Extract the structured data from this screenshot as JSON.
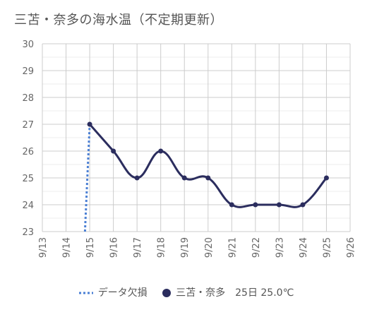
{
  "chart_data": {
    "type": "line",
    "title": "三苫・奈多の海水温（不定期更新）",
    "xlabel": "",
    "ylabel": "",
    "categories": [
      "9/13",
      "9/14",
      "9/15",
      "9/16",
      "9/17",
      "9/18",
      "9/19",
      "9/20",
      "9/21",
      "9/22",
      "9/23",
      "9/24",
      "9/25",
      "9/26"
    ],
    "ylim": [
      23,
      30
    ],
    "yticks": [
      "30",
      "29",
      "28",
      "27",
      "26",
      "25",
      "24",
      "23"
    ],
    "grid": true,
    "legend_position": "bottom",
    "series": [
      {
        "name": "三苫・奈多",
        "legend_label": "三苫・奈多　25日 25.0℃",
        "color": "#2b2d5e",
        "style": "solid-smooth",
        "points": [
          {
            "x": "9/15",
            "y": 27
          },
          {
            "x": "9/16",
            "y": 26
          },
          {
            "x": "9/17",
            "y": 25
          },
          {
            "x": "9/18",
            "y": 26
          },
          {
            "x": "9/19",
            "y": 25
          },
          {
            "x": "9/20",
            "y": 25
          },
          {
            "x": "9/21",
            "y": 24
          },
          {
            "x": "9/22",
            "y": 24
          },
          {
            "x": "9/23",
            "y": 24
          },
          {
            "x": "9/24",
            "y": 24
          },
          {
            "x": "9/25",
            "y": 25
          }
        ]
      },
      {
        "name": "データ欠損",
        "legend_label": "データ欠損",
        "color": "#4a7fd4",
        "style": "dotted",
        "points": [
          {
            "x": "9/14.8",
            "y": 23
          },
          {
            "x": "9/15",
            "y": 27
          }
        ]
      }
    ]
  }
}
